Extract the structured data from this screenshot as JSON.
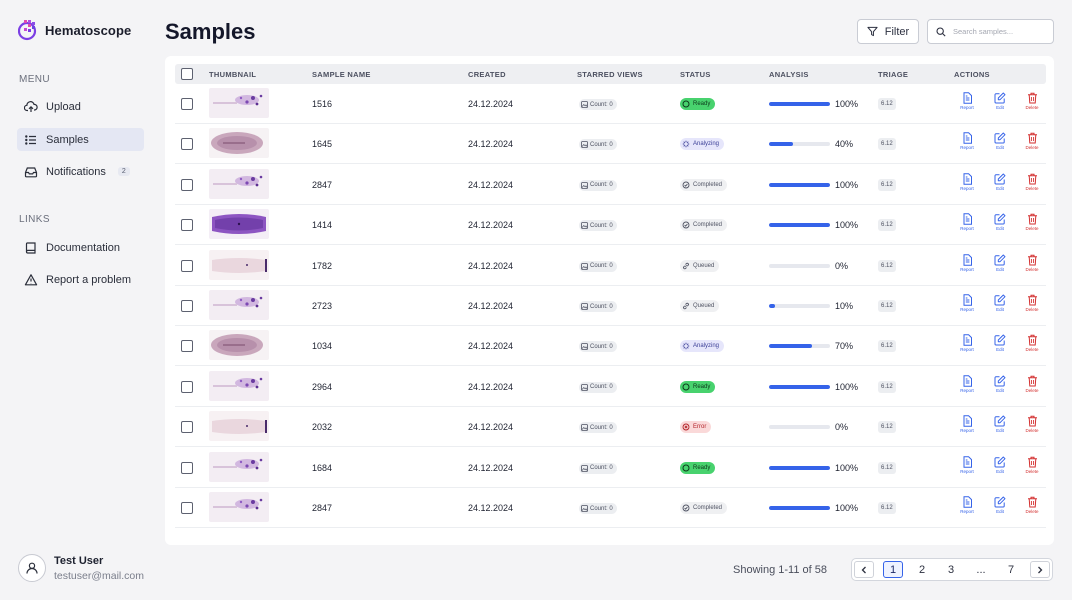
{
  "app": {
    "name": "Hematoscope"
  },
  "sidebar": {
    "menu_label": "MENU",
    "menu": [
      {
        "label": "Upload",
        "icon": "upload-cloud-icon"
      },
      {
        "label": "Samples",
        "icon": "list-icon",
        "active": true
      },
      {
        "label": "Notifications",
        "icon": "inbox-icon",
        "badge": "2"
      }
    ],
    "links_label": "LINKS",
    "links": [
      {
        "label": "Documentation",
        "icon": "book-icon"
      },
      {
        "label": "Report a problem",
        "icon": "warning-icon"
      }
    ],
    "user": {
      "name": "Test User",
      "email": "testuser@mail.com"
    }
  },
  "header": {
    "title": "Samples",
    "filter_label": "Filter",
    "search_placeholder": "Search samples..."
  },
  "table": {
    "columns": {
      "thumbnail": "THUMBNAIL",
      "sample_name": "SAMPLE NAME",
      "created": "CREATED",
      "starred_views": "STARRED VIEWS",
      "status": "STATUS",
      "analysis": "ANALYSIS",
      "triage": "TRIAGE",
      "actions": "ACTIONS"
    },
    "action_labels": {
      "report": "Report",
      "edit": "Edit",
      "delete": "Delete"
    },
    "rows": [
      {
        "name": "1516",
        "created": "24.12.2024",
        "starred": "Count: 0",
        "status": "Ready",
        "progress": 100,
        "progress_label": "100%",
        "triage": "6.12",
        "thumb": "scatter"
      },
      {
        "name": "1645",
        "created": "24.12.2024",
        "starred": "Count: 0",
        "status": "Analyzing",
        "progress": 40,
        "progress_label": "40%",
        "triage": "6.12",
        "thumb": "oval"
      },
      {
        "name": "2847",
        "created": "24.12.2024",
        "starred": "Count: 0",
        "status": "Completed",
        "progress": 100,
        "progress_label": "100%",
        "triage": "6.12",
        "thumb": "scatter"
      },
      {
        "name": "1414",
        "created": "24.12.2024",
        "starred": "Count: 0",
        "status": "Completed",
        "progress": 100,
        "progress_label": "100%",
        "triage": "6.12",
        "thumb": "dense"
      },
      {
        "name": "1782",
        "created": "24.12.2024",
        "starred": "Count: 0",
        "status": "Queued",
        "progress": 0,
        "progress_label": "0%",
        "triage": "6.12",
        "thumb": "faint"
      },
      {
        "name": "2723",
        "created": "24.12.2024",
        "starred": "Count: 0",
        "status": "Queued",
        "progress": 10,
        "progress_label": "10%",
        "triage": "6.12",
        "thumb": "scatter"
      },
      {
        "name": "1034",
        "created": "24.12.2024",
        "starred": "Count: 0",
        "status": "Analyzing",
        "progress": 70,
        "progress_label": "70%",
        "triage": "6.12",
        "thumb": "oval"
      },
      {
        "name": "2964",
        "created": "24.12.2024",
        "starred": "Count: 0",
        "status": "Ready",
        "progress": 100,
        "progress_label": "100%",
        "triage": "6.12",
        "thumb": "scatter"
      },
      {
        "name": "2032",
        "created": "24.12.2024",
        "starred": "Count: 0",
        "status": "Error",
        "progress": 0,
        "progress_label": "0%",
        "triage": "6.12",
        "thumb": "faint"
      },
      {
        "name": "1684",
        "created": "24.12.2024",
        "starred": "Count: 0",
        "status": "Ready",
        "progress": 100,
        "progress_label": "100%",
        "triage": "6.12",
        "thumb": "scatter"
      },
      {
        "name": "2847",
        "created": "24.12.2024",
        "starred": "Count: 0",
        "status": "Completed",
        "progress": 100,
        "progress_label": "100%",
        "triage": "6.12",
        "thumb": "scatter"
      }
    ]
  },
  "pagination": {
    "showing": "Showing 1-11 of 58",
    "pages": [
      "1",
      "2",
      "3",
      "...",
      "7"
    ],
    "current": "1"
  },
  "colors": {
    "accent": "#3563e9",
    "ready": "#48d26e",
    "error": "#d32f2f"
  }
}
